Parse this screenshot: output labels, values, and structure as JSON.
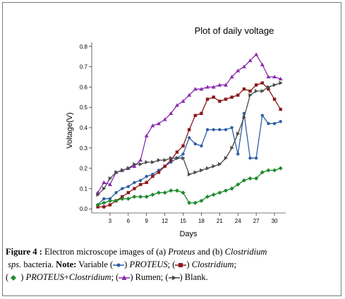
{
  "chart_data": {
    "type": "line",
    "title": "Plot of daily voltage",
    "xlabel": "Days",
    "ylabel": "Voltage(V)",
    "xlim": [
      0,
      31.5
    ],
    "ylim": [
      -0.02,
      0.82
    ],
    "xticks": [
      3,
      6,
      9,
      12,
      15,
      18,
      21,
      24,
      27,
      30
    ],
    "yticks": [
      0.0,
      0.1,
      0.2,
      0.3,
      0.4,
      0.5,
      0.6,
      0.7,
      0.8
    ],
    "ytick_labels": [
      "0.0",
      "0.1",
      "0.2",
      "0.3",
      "0.4",
      "0.5",
      "0.6",
      "0.7",
      "0.8"
    ],
    "grid": false,
    "legend": false,
    "series": [
      {
        "marker": "circle",
        "color": "#2e5fa8",
        "x": [
          1,
          2,
          3,
          4,
          5,
          6,
          7,
          8,
          9,
          10,
          11,
          12,
          13,
          14,
          15,
          16,
          17,
          18,
          19,
          20,
          21,
          22,
          23,
          24,
          25,
          26,
          27,
          28,
          29,
          30,
          31
        ],
        "y": [
          0.02,
          0.05,
          0.05,
          0.08,
          0.1,
          0.11,
          0.13,
          0.14,
          0.16,
          0.17,
          0.19,
          0.21,
          0.23,
          0.25,
          0.27,
          0.35,
          0.32,
          0.31,
          0.39,
          0.39,
          0.39,
          0.39,
          0.4,
          0.27,
          0.47,
          0.25,
          0.25,
          0.46,
          0.42,
          0.42,
          0.43
        ]
      },
      {
        "marker": "square",
        "color": "#8b1a1a",
        "x": [
          1,
          2,
          3,
          4,
          5,
          6,
          7,
          8,
          9,
          10,
          11,
          12,
          13,
          14,
          15,
          16,
          17,
          18,
          19,
          20,
          21,
          22,
          23,
          24,
          25,
          26,
          27,
          28,
          29,
          30,
          31
        ],
        "y": [
          0.01,
          0.01,
          0.02,
          0.04,
          0.06,
          0.08,
          0.1,
          0.12,
          0.13,
          0.16,
          0.18,
          0.21,
          0.24,
          0.28,
          0.31,
          0.39,
          0.46,
          0.47,
          0.54,
          0.55,
          0.53,
          0.54,
          0.55,
          0.56,
          0.59,
          0.58,
          0.61,
          0.62,
          0.59,
          0.54,
          0.49
        ]
      },
      {
        "marker": "diamond",
        "color": "#1f8a2e",
        "x": [
          1,
          2,
          3,
          4,
          5,
          6,
          7,
          8,
          9,
          10,
          11,
          12,
          13,
          14,
          15,
          16,
          17,
          18,
          19,
          20,
          21,
          22,
          23,
          24,
          25,
          26,
          27,
          28,
          29,
          30,
          31
        ],
        "y": [
          0.02,
          0.03,
          0.04,
          0.04,
          0.05,
          0.05,
          0.06,
          0.06,
          0.06,
          0.07,
          0.08,
          0.08,
          0.09,
          0.09,
          0.08,
          0.03,
          0.03,
          0.04,
          0.06,
          0.07,
          0.08,
          0.09,
          0.1,
          0.12,
          0.14,
          0.15,
          0.15,
          0.18,
          0.19,
          0.19,
          0.2
        ]
      },
      {
        "marker": "triangle",
        "color": "#8a2bb0",
        "x": [
          1,
          2,
          3,
          4,
          5,
          6,
          7,
          8,
          9,
          10,
          11,
          12,
          13,
          14,
          15,
          16,
          17,
          18,
          19,
          20,
          21,
          22,
          23,
          24,
          25,
          26,
          27,
          28,
          29,
          30,
          31
        ],
        "y": [
          0.08,
          0.13,
          0.12,
          0.18,
          0.19,
          0.2,
          0.21,
          0.24,
          0.36,
          0.41,
          0.42,
          0.44,
          0.47,
          0.51,
          0.53,
          0.56,
          0.59,
          0.59,
          0.6,
          0.6,
          0.61,
          0.61,
          0.65,
          0.68,
          0.7,
          0.73,
          0.76,
          0.71,
          0.65,
          0.65,
          0.64
        ]
      },
      {
        "marker": "arrow",
        "color": "#4a4a4a",
        "x": [
          1,
          2,
          3,
          4,
          5,
          6,
          7,
          8,
          9,
          10,
          11,
          12,
          13,
          14,
          15,
          16,
          17,
          18,
          19,
          20,
          21,
          22,
          23,
          24,
          25,
          26,
          27,
          28,
          29,
          30,
          31
        ],
        "y": [
          0.07,
          0.1,
          0.15,
          0.18,
          0.19,
          0.2,
          0.22,
          0.22,
          0.23,
          0.23,
          0.24,
          0.24,
          0.25,
          0.25,
          0.25,
          0.17,
          0.18,
          0.19,
          0.2,
          0.21,
          0.22,
          0.25,
          0.3,
          0.37,
          0.45,
          0.56,
          0.58,
          0.58,
          0.6,
          0.61,
          0.62
        ]
      }
    ]
  },
  "caption": {
    "label": "Figure 4 :",
    "text1": " Electron microscope images of (a) ",
    "proteus1": "Proteus",
    "text2": " and (b) ",
    "clostridium1": "Clostridium",
    "line2a": "sps.",
    "line2b": " bacteria. ",
    "note": "Note:",
    "variable": " Variable (",
    "proteus_caps": "PROTEUS",
    "sep1": ";  (",
    "clostridium2": "Clostridium",
    "sep2": ";",
    "line3a": "(",
    "proteus_plus": "PROTEUS",
    "plus": "+",
    "clostridium3": "Clostridium",
    "sep3": ";  (",
    "rumen": ") Rumen;  (",
    "blank": ") Blank."
  }
}
